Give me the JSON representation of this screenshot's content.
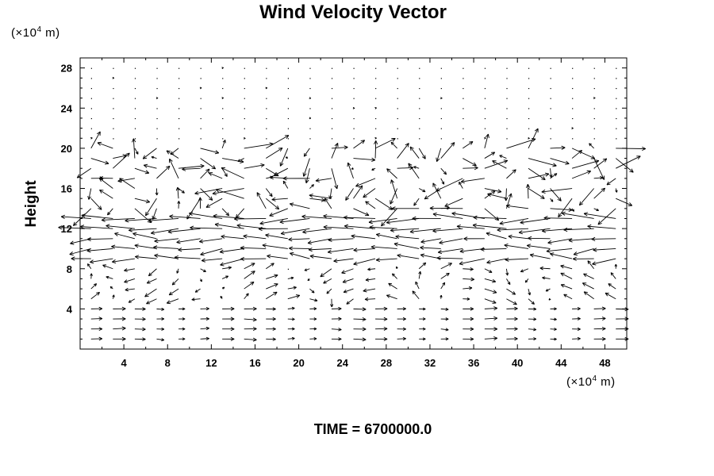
{
  "chart_data": {
    "type": "vector-field",
    "title": "Wind Velocity Vector",
    "xlabel": "",
    "ylabel": "Height",
    "x_unit_prefix": "(×10",
    "x_unit_exp": "4",
    "x_unit_suffix": " m)",
    "y_unit_prefix": "(×10",
    "y_unit_exp": "4",
    "y_unit_suffix": " m)",
    "xlim": [
      0,
      50
    ],
    "ylim": [
      0,
      29
    ],
    "xticks": [
      4,
      8,
      12,
      16,
      20,
      24,
      28,
      32,
      36,
      40,
      44,
      48
    ],
    "yticks": [
      4,
      8,
      12,
      16,
      20,
      24,
      28
    ],
    "grid": false,
    "time_label": "TIME = 6700000.0",
    "grid_spacing_x": 2,
    "grid_spacing_y": 1,
    "layers": [
      {
        "y_range": [
          1,
          5
        ],
        "direction": "east",
        "typical_speed": 0.7
      },
      {
        "y_range": [
          5,
          9
        ],
        "direction": "mixed",
        "typical_speed": 0.9
      },
      {
        "y_range": [
          9,
          14
        ],
        "direction": "west",
        "typical_speed": 1.8
      },
      {
        "y_range": [
          14,
          20
        ],
        "direction": "turbulent",
        "typical_speed": 1.6
      },
      {
        "y_range": [
          20,
          28
        ],
        "direction": "calm",
        "typical_speed": 0.15
      }
    ]
  }
}
